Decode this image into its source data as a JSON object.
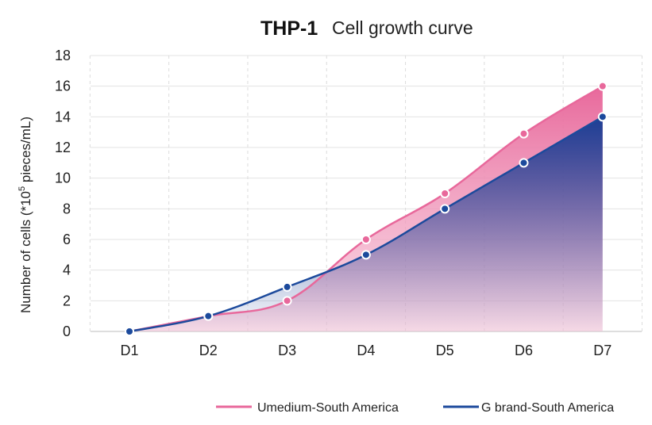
{
  "chart_data": {
    "type": "area",
    "title": "THP-1",
    "subtitle": "Cell growth curve",
    "ylabel": "Number of cells  (*10",
    "ylabel_superscript": "5",
    "ylabel_suffix": " pieces/mL)",
    "xlabel": "",
    "categories": [
      "D1",
      "D2",
      "D3",
      "D4",
      "D5",
      "D6",
      "D7"
    ],
    "ylim": [
      0,
      18
    ],
    "yticks": [
      "0",
      "2",
      "4",
      "6",
      "8",
      "10",
      "12",
      "14",
      "16",
      "18"
    ],
    "grid": {
      "horizontal": true,
      "vertical": "dashed"
    },
    "legend_position": "bottom-right",
    "series": [
      {
        "name": "Umedium-South America",
        "color": "#e8689b",
        "values": [
          0,
          1,
          2,
          6,
          9,
          12.9,
          16
        ]
      },
      {
        "name": "G brand-South America",
        "color": "#1c4a9c",
        "values": [
          0,
          1,
          2.9,
          5,
          8,
          11,
          14
        ]
      }
    ]
  }
}
